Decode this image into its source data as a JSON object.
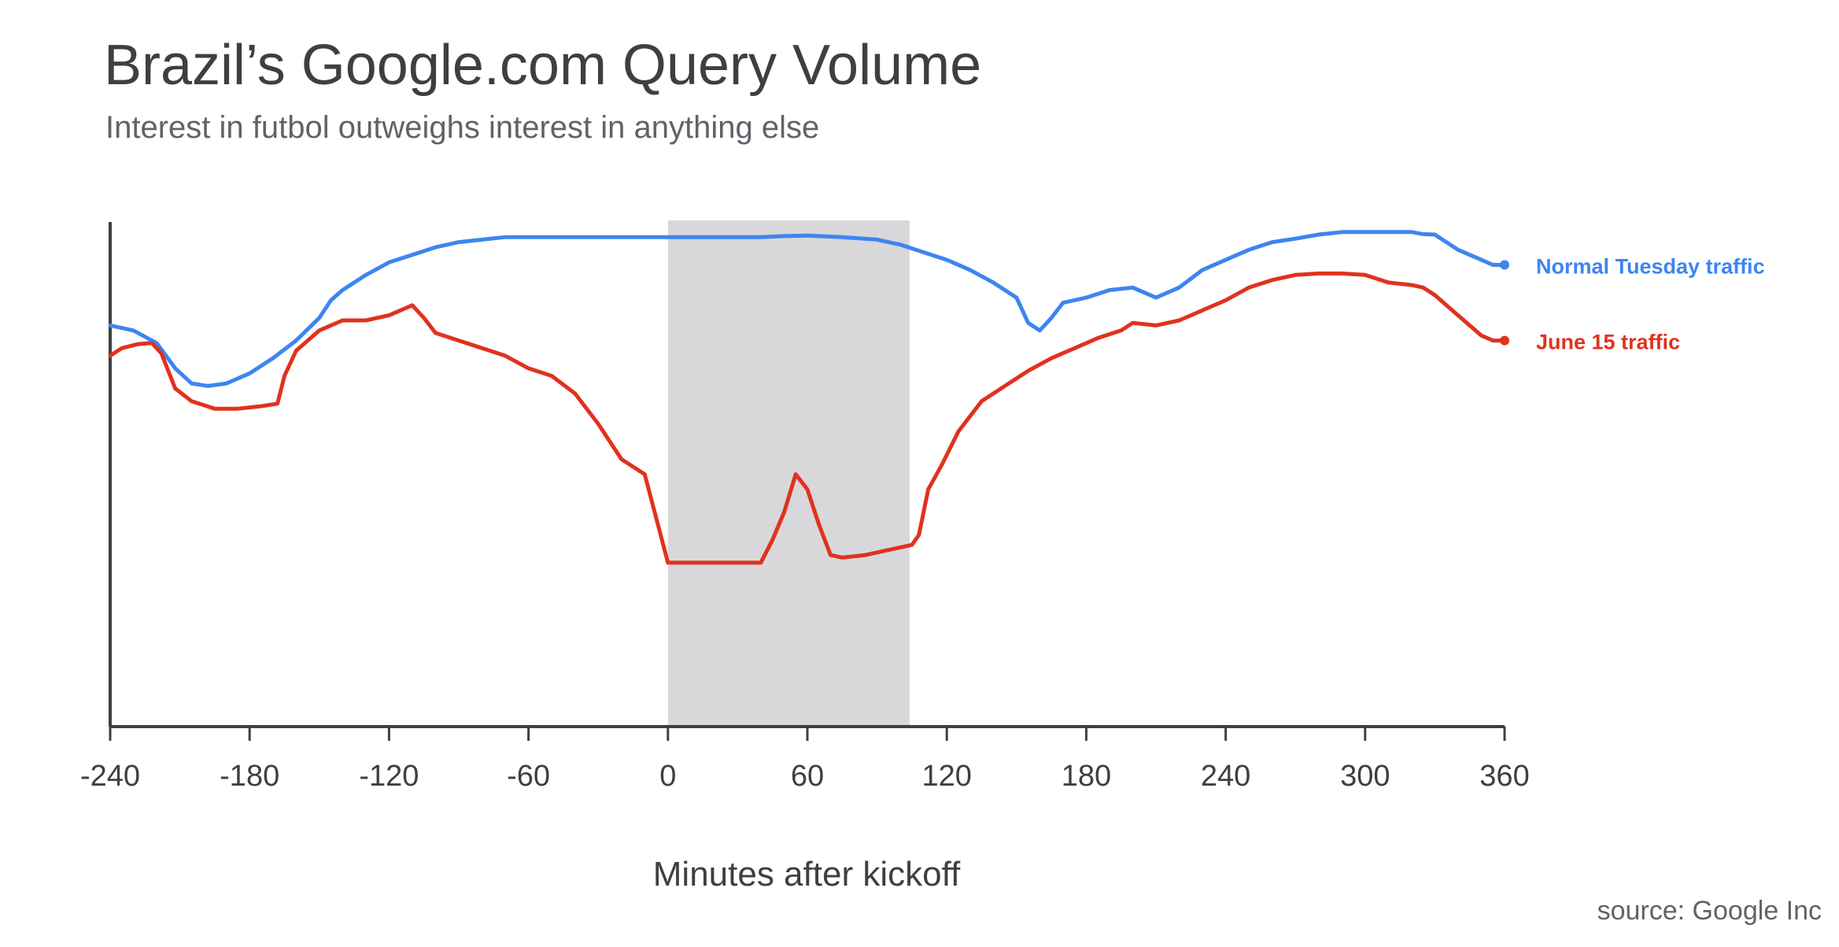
{
  "chart_data": {
    "type": "line",
    "title": "Brazil’s Google.com Query Volume",
    "subtitle": "Interest in futbol outweighs interest in anything else",
    "xlabel": "Minutes after kickoff",
    "ylabel": "",
    "xlim": [
      -240,
      360
    ],
    "ylim": [
      0,
      100
    ],
    "xticks": [
      -240,
      -180,
      -120,
      -60,
      0,
      60,
      120,
      180,
      240,
      300,
      360
    ],
    "y_tick_labels_shown": false,
    "grid": false,
    "legend_placement": "right, at series line ends",
    "highlight_region": {
      "x_start": 0,
      "x_end": 104,
      "color": "#d8d8da"
    },
    "series": [
      {
        "name": "Normal Tuesday traffic",
        "color": "#3d85f0",
        "x": [
          -240,
          -230,
          -220,
          -212,
          -205,
          -198,
          -190,
          -180,
          -170,
          -160,
          -150,
          -145,
          -140,
          -130,
          -120,
          -110,
          -100,
          -90,
          -80,
          -70,
          -60,
          -40,
          -20,
          0,
          20,
          40,
          50,
          60,
          75,
          90,
          100,
          110,
          120,
          130,
          140,
          145,
          150,
          155,
          160,
          165,
          170,
          180,
          190,
          200,
          210,
          220,
          230,
          240,
          250,
          260,
          270,
          280,
          290,
          300,
          310,
          320,
          325,
          330,
          340,
          350,
          355,
          360
        ],
        "values": [
          79.5,
          78.5,
          76,
          71,
          68,
          67.5,
          68,
          70,
          73,
          76.5,
          81,
          84.5,
          86.5,
          89.5,
          92,
          93.5,
          95,
          96,
          96.5,
          97,
          97,
          97,
          97,
          97,
          97,
          97,
          97.2,
          97.3,
          97,
          96.5,
          95.5,
          94,
          92.5,
          90.5,
          88,
          86.5,
          85,
          80,
          78.5,
          81,
          84,
          85,
          86.5,
          87,
          85,
          87,
          90.5,
          92.5,
          94.5,
          96,
          96.7,
          97.5,
          98,
          98,
          98,
          98,
          97.6,
          97.5,
          94.5,
          92.5,
          91.5,
          91.5
        ]
      },
      {
        "name": "June 15 traffic",
        "color": "#e0321f",
        "x": [
          -240,
          -235,
          -228,
          -222,
          -218,
          -212,
          -205,
          -195,
          -185,
          -175,
          -168,
          -165,
          -160,
          -150,
          -140,
          -130,
          -120,
          -110,
          -105,
          -100,
          -90,
          -80,
          -70,
          -60,
          -50,
          -40,
          -30,
          -20,
          -10,
          0,
          10,
          20,
          30,
          35,
          40,
          45,
          50,
          55,
          60,
          65,
          70,
          75,
          85,
          95,
          105,
          108,
          112,
          118,
          125,
          135,
          145,
          155,
          165,
          175,
          185,
          195,
          200,
          210,
          220,
          230,
          240,
          250,
          260,
          270,
          280,
          290,
          300,
          310,
          320,
          325,
          330,
          340,
          350,
          355,
          360
        ],
        "values": [
          73.5,
          75,
          75.8,
          76,
          74,
          67,
          64.5,
          63,
          63,
          63.5,
          64,
          69.5,
          74.5,
          78.5,
          80.5,
          80.5,
          81.5,
          83.5,
          81,
          78,
          76.5,
          75,
          73.5,
          71,
          69.5,
          66,
          60,
          53,
          50,
          32.5,
          32.5,
          32.5,
          32.5,
          32.5,
          32.5,
          37,
          42.5,
          50,
          47,
          40,
          34,
          33.5,
          34,
          35,
          36,
          38,
          47,
          52,
          58.5,
          64.5,
          67.5,
          70.5,
          73,
          75,
          77,
          78.5,
          80,
          79.5,
          80.5,
          82.5,
          84.5,
          87,
          88.5,
          89.5,
          89.8,
          89.8,
          89.5,
          88,
          87.5,
          87,
          85.5,
          81.5,
          77.5,
          76.5,
          76.5
        ]
      }
    ]
  },
  "source": "source: Google Inc"
}
